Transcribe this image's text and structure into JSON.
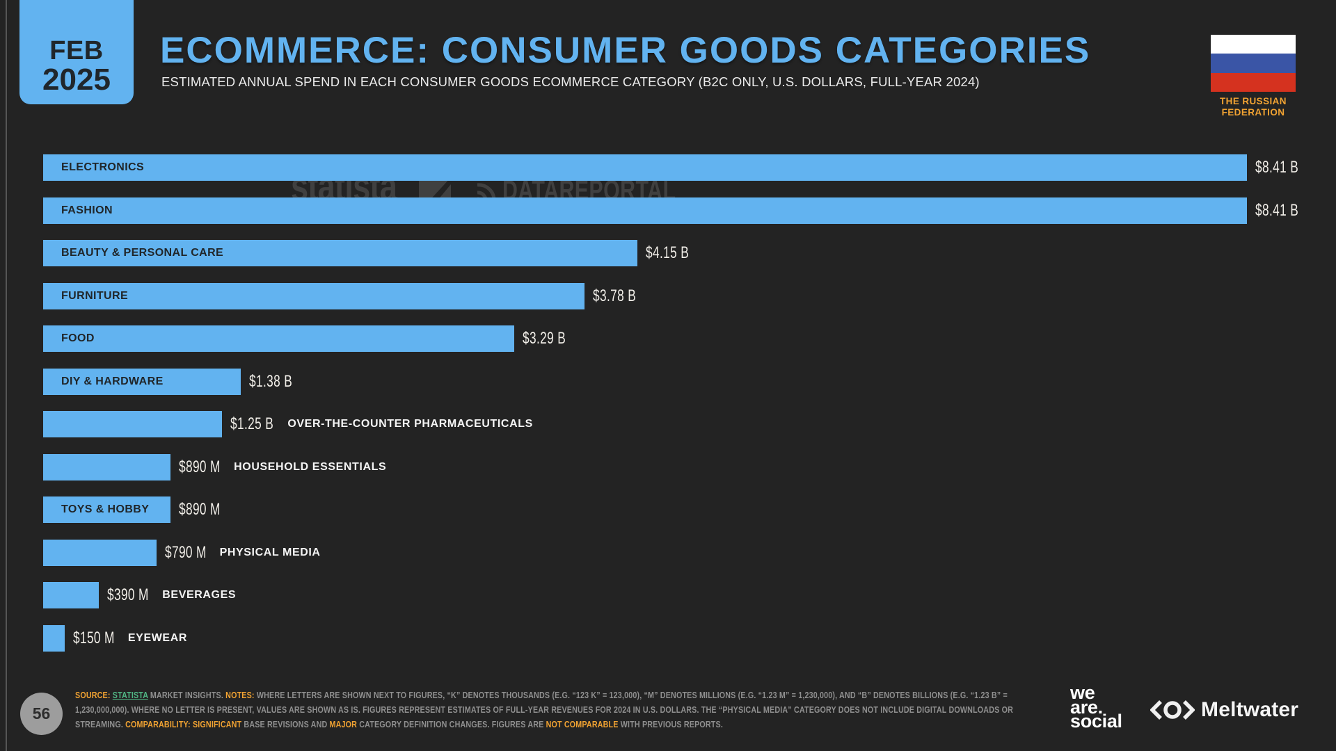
{
  "colors": {
    "bg": "#232323",
    "accent": "#62b3f0",
    "orange": "#f0a232",
    "green": "#50b584",
    "note_gray": "#8f8f8f",
    "circle_gray": "#9d9d9d",
    "flag_blue": "#3a55a6",
    "flag_red": "#d5321f",
    "wm": "rgba(90,90,90,0.55)"
  },
  "badge": {
    "month": "FEB",
    "year": "2025"
  },
  "header": {
    "title": "ECOMMERCE: CONSUMER GOODS CATEGORIES",
    "subtitle": "ESTIMATED ANNUAL SPEND IN EACH CONSUMER GOODS ECOMMERCE CATEGORY (B2C ONLY, U.S. DOLLARS, FULL-YEAR 2024)",
    "country_label_line1": "THE RUSSIAN",
    "country_label_line2": "FEDERATION",
    "flag": "russia-flag"
  },
  "watermarks": {
    "statista": "statista",
    "datareportal": "DATAREPORTAL"
  },
  "chart_data": {
    "type": "bar",
    "orientation": "horizontal",
    "title": "ECOMMERCE: CONSUMER GOODS CATEGORIES",
    "unit": "U.S. dollars, billions",
    "xlim": [
      0,
      8.41
    ],
    "grid": false,
    "legend": false,
    "categories": [
      "ELECTRONICS",
      "FASHION",
      "BEAUTY & PERSONAL CARE",
      "FURNITURE",
      "FOOD",
      "DIY & HARDWARE",
      "OVER-THE-COUNTER PHARMACEUTICALS",
      "HOUSEHOLD ESSENTIALS",
      "TOYS & HOBBY",
      "PHYSICAL MEDIA",
      "BEVERAGES",
      "EYEWEAR"
    ],
    "values": [
      8.41,
      8.41,
      4.15,
      3.78,
      3.29,
      1.38,
      1.25,
      0.89,
      0.89,
      0.79,
      0.39,
      0.15
    ],
    "value_labels": [
      "$8.41 B",
      "$8.41 B",
      "$4.15 B",
      "$3.78 B",
      "$3.29 B",
      "$1.38 B",
      "$1.25 B",
      "$890 M",
      "$890 M",
      "$790 M",
      "$390 M",
      "$150 M"
    ],
    "label_inside": [
      true,
      true,
      true,
      true,
      true,
      true,
      false,
      false,
      true,
      false,
      false,
      false
    ]
  },
  "footer": {
    "page_number": "56",
    "note_segments": [
      {
        "style": "orange",
        "text": "SOURCE: "
      },
      {
        "style": "link",
        "text": "STATISTA"
      },
      {
        "style": "gray",
        "text": " MARKET INSIGHTS. "
      },
      {
        "style": "orange",
        "text": "NOTES: "
      },
      {
        "style": "gray",
        "text": "WHERE LETTERS ARE SHOWN NEXT TO FIGURES, “K” DENOTES THOUSANDS (E.G. “123 K” = 123,000), “M” DENOTES MILLIONS (E.G. “1.23 M” = 1,230,000), AND “B” DENOTES BILLIONS (E.G. “1.23 B” = 1,230,000,000). WHERE NO LETTER IS PRESENT, VALUES ARE SHOWN AS IS. FIGURES REPRESENT ESTIMATES OF FULL-YEAR REVENUES FOR 2024 IN U.S. DOLLARS. THE “PHYSICAL MEDIA” CATEGORY DOES NOT INCLUDE DIGITAL DOWNLOADS OR STREAMING. "
      },
      {
        "style": "orange",
        "text": "COMPARABILITY: SIGNIFICANT"
      },
      {
        "style": "gray",
        "text": " BASE REVISIONS AND "
      },
      {
        "style": "orange",
        "text": "MAJOR"
      },
      {
        "style": "gray",
        "text": " CATEGORY DEFINITION CHANGES. FIGURES ARE "
      },
      {
        "style": "orange",
        "text": "NOT COMPARABLE"
      },
      {
        "style": "gray",
        "text": " WITH PREVIOUS REPORTS."
      }
    ],
    "wearesocial_lines": {
      "0": "we",
      "1": "are.",
      "2": "social"
    },
    "meltwater_label": "Meltwater"
  }
}
